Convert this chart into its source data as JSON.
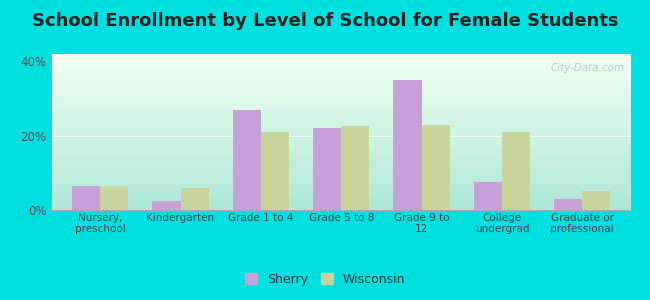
{
  "title": "School Enrollment by Level of School for Female Students",
  "categories": [
    "Nursery,\npreschool",
    "Kindergarten",
    "Grade 1 to 4",
    "Grade 5 to 8",
    "Grade 9 to\n12",
    "College\nundergrad",
    "Graduate or\nprofessional"
  ],
  "sherry": [
    6.5,
    2.5,
    27.0,
    22.0,
    35.0,
    7.5,
    3.0
  ],
  "wisconsin": [
    6.5,
    6.0,
    21.0,
    22.5,
    23.0,
    21.0,
    5.0
  ],
  "sherry_color": "#c8a0d8",
  "wisconsin_color": "#c8d4a0",
  "background_outer": "#00e0e0",
  "gradient_top": "#f0fff0",
  "gradient_bottom": "#b0e8d8",
  "ylim": [
    0,
    42
  ],
  "yticks": [
    0,
    20,
    40
  ],
  "ytick_labels": [
    "0%",
    "20%",
    "40%"
  ],
  "bar_width": 0.35,
  "title_fontsize": 13,
  "legend_labels": [
    "Sherry",
    "Wisconsin"
  ],
  "watermark": "City-Data.com"
}
